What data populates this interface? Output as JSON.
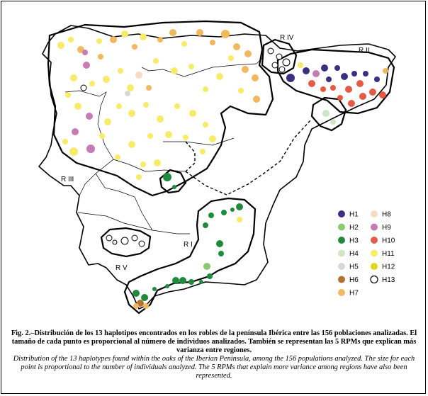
{
  "region_labels": [
    "R IV",
    "R II",
    "R III",
    "R I",
    "R V"
  ],
  "legend": [
    {
      "id": "H1",
      "label": "H1",
      "color": "#3a3080",
      "hollow": false
    },
    {
      "id": "H2",
      "label": "H2",
      "color": "#8cc870",
      "hollow": false
    },
    {
      "id": "H3",
      "label": "H3",
      "color": "#1f8a3c",
      "hollow": false
    },
    {
      "id": "H4",
      "label": "H4",
      "color": "#cfe6c8",
      "hollow": false
    },
    {
      "id": "H5",
      "label": "H5",
      "color": "#d8d8d8",
      "hollow": false
    },
    {
      "id": "H6",
      "label": "H6",
      "color": "#b5722e",
      "hollow": false
    },
    {
      "id": "H7",
      "label": "H7",
      "color": "#f2b860",
      "hollow": false
    },
    {
      "id": "H8",
      "label": "H8",
      "color": "#f7dcc0",
      "hollow": false
    },
    {
      "id": "H9",
      "label": "H9",
      "color": "#c77bb5",
      "hollow": false
    },
    {
      "id": "H10",
      "label": "H10",
      "color": "#e55a45",
      "hollow": false
    },
    {
      "id": "H11",
      "label": "H11",
      "color": "#f6ec6a",
      "hollow": false
    },
    {
      "id": "H12",
      "label": "H12",
      "color": "#e6d21a",
      "hollow": false
    },
    {
      "id": "H13",
      "label": "H13",
      "color": "#ffffff",
      "hollow": true
    }
  ],
  "caption": {
    "spanish": "Fig. 2.–Distribución de los 13 haplotipos encontrados en los robles de la península Ibérica entre las 156 poblaciones analizadas. El tamaño de cada punto es proporcional al número de individuos analizados. También se representan las 5 RPMs que explican más varianza entre regiones.",
    "english": "Distribution of the 13 haplotypes found within the oaks of the Iberian Peninsula, among the 156 populations analyzed. The size for each point is proportional to the number of individuals analyzed. The 5 RPMs that explain more variance among regions have also been represented."
  }
}
